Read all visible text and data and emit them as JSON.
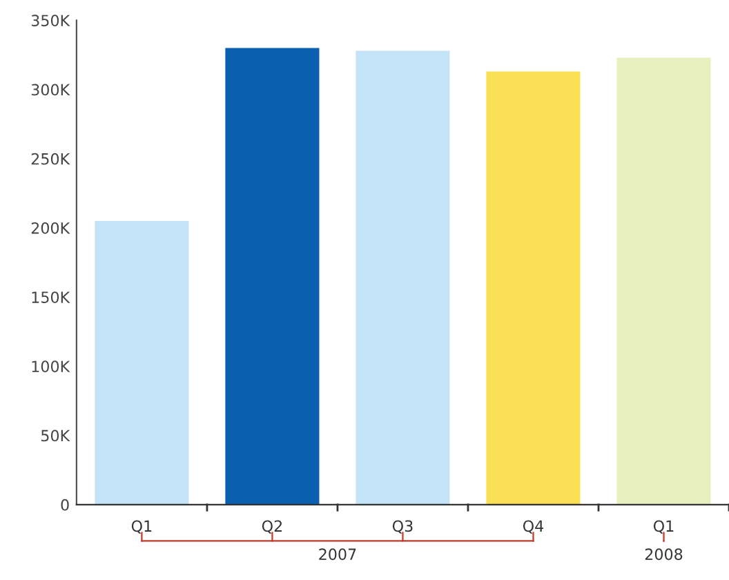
{
  "chart_data": {
    "type": "bar",
    "categories": [
      "Q1",
      "Q2",
      "Q3",
      "Q4",
      "Q1"
    ],
    "values": [
      205000,
      330000,
      328000,
      313000,
      323000
    ],
    "colors": [
      "#c5e3f7",
      "#0a5fb0",
      "#c5e3f7",
      "#f9e055",
      "#e8f0c0"
    ],
    "ylim": [
      0,
      350000
    ],
    "yticks": [
      {
        "value": 0,
        "label": "0"
      },
      {
        "value": 50000,
        "label": "50K"
      },
      {
        "value": 100000,
        "label": "100K"
      },
      {
        "value": 150000,
        "label": "150K"
      },
      {
        "value": 200000,
        "label": "200K"
      },
      {
        "value": 250000,
        "label": "250K"
      },
      {
        "value": 300000,
        "label": "300K"
      },
      {
        "value": 350000,
        "label": "350K"
      }
    ],
    "annotations": [
      "2007",
      "2008"
    ],
    "grid": false,
    "legend": false
  }
}
